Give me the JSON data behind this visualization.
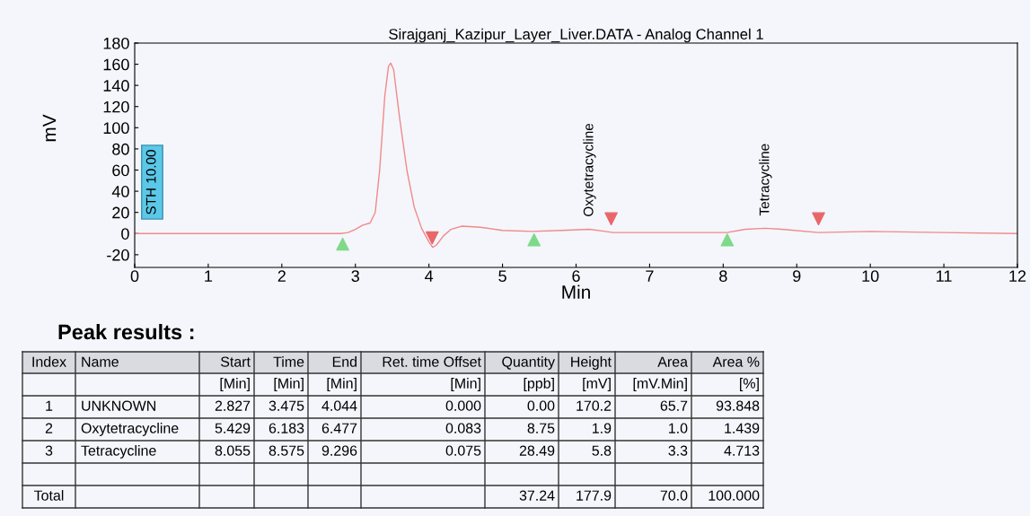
{
  "chart_data": {
    "type": "line",
    "title": "Sirajganj_Kazipur_Layer_Liver.DATA - Analog Channel 1",
    "xlabel": "Min",
    "ylabel": "mV",
    "xlim": [
      0,
      12
    ],
    "xticks": [
      0,
      1,
      2,
      3,
      4,
      5,
      6,
      7,
      8,
      9,
      10,
      11,
      12
    ],
    "ylim": [
      -32,
      180
    ],
    "yticks": [
      -20,
      0,
      20,
      40,
      60,
      80,
      100,
      120,
      140,
      160,
      180
    ],
    "grid": false,
    "legend": false,
    "line_style": "solid",
    "series": [
      {
        "color": "#f08a8a",
        "x": [
          0,
          1,
          2,
          2.8,
          2.9,
          3.0,
          3.1,
          3.2,
          3.27,
          3.33,
          3.4,
          3.45,
          3.48,
          3.52,
          3.6,
          3.7,
          3.8,
          3.9,
          4.0,
          4.05,
          4.1,
          4.2,
          4.3,
          4.45,
          4.7,
          5.0,
          5.4,
          5.8,
          6.18,
          6.4,
          6.5,
          7,
          8.05,
          8.3,
          8.575,
          8.8,
          9.296,
          10,
          11,
          12
        ],
        "values": [
          0,
          0,
          0,
          0,
          1,
          4,
          8,
          10,
          20,
          60,
          130,
          158,
          161,
          155,
          110,
          60,
          25,
          5,
          -8,
          -13,
          -11,
          -2,
          4,
          7,
          6,
          3,
          2,
          3,
          4,
          2,
          1,
          1,
          1,
          4,
          5,
          4,
          1,
          2,
          1,
          0
        ]
      },
      {
        "type": "scatter",
        "marker": "triangle",
        "color": "#7fd98a",
        "x": [
          2.827,
          5.429,
          8.055
        ],
        "values": [
          -10,
          -6,
          -6
        ]
      },
      {
        "type": "scatter",
        "marker": "triangle_down",
        "color": "#e8676b",
        "x": [
          4.044,
          6.477,
          9.296
        ],
        "values": [
          -4,
          14,
          14
        ]
      }
    ],
    "annotations": [
      "STH 10.00",
      {
        "text": "Oxytetracycline",
        "x": 6.183,
        "y": 4
      },
      {
        "text": "Tetracycline",
        "x": 8.575,
        "y": 5
      },
      "Peak results :",
      "Index\tName\tStart\tTime\tEnd\tRet. time Offset\tQuantity\tHeight\tArea\tArea %",
      "\t\t[Min]\t[Min]\t[Min]\t[Min]\t[ppb]\t[mV]\t[mV.Min]\t[%]",
      "1\tUNKNOWN\t2.827\t3.475\t4.044\t0.000\t0.00\t170.2\t65.7\t93.848",
      "2\tOxytetracycline\t5.429\t6.183\t6.477\t0.083\t8.75\t1.9\t1.0\t1.439",
      "3\tTetracycline\t8.055\t8.575\t9.296\t0.075\t28.49\t5.8\t3.3\t4.713",
      "Total\t\t\t\t\t\t37.24\t177.9\t70.0\t100.000"
    ]
  }
}
